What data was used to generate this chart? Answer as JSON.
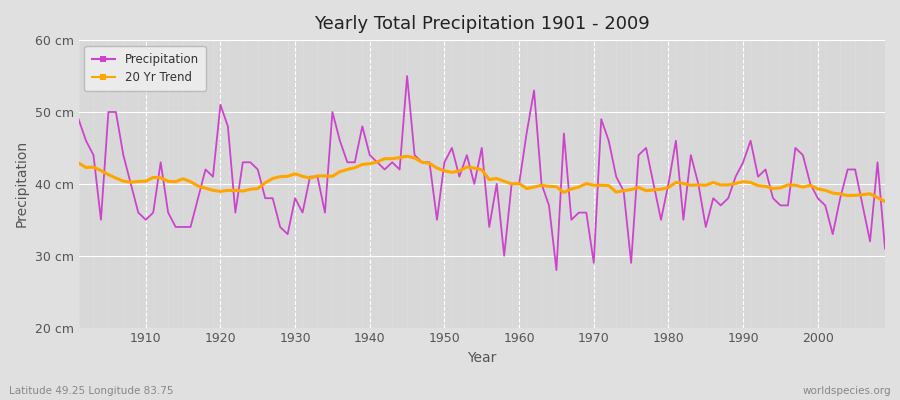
{
  "title": "Yearly Total Precipitation 1901 - 2009",
  "xlabel": "Year",
  "ylabel": "Precipitation",
  "subtitle_left": "Latitude 49.25 Longitude 83.75",
  "subtitle_right": "worldspecies.org",
  "years": [
    1901,
    1902,
    1903,
    1904,
    1905,
    1906,
    1907,
    1908,
    1909,
    1910,
    1911,
    1912,
    1913,
    1914,
    1915,
    1916,
    1917,
    1918,
    1919,
    1920,
    1921,
    1922,
    1923,
    1924,
    1925,
    1926,
    1927,
    1928,
    1929,
    1930,
    1931,
    1932,
    1933,
    1934,
    1935,
    1936,
    1937,
    1938,
    1939,
    1940,
    1941,
    1942,
    1943,
    1944,
    1945,
    1946,
    1947,
    1948,
    1949,
    1950,
    1951,
    1952,
    1953,
    1954,
    1955,
    1956,
    1957,
    1958,
    1959,
    1960,
    1961,
    1962,
    1963,
    1964,
    1965,
    1966,
    1967,
    1968,
    1969,
    1970,
    1971,
    1972,
    1973,
    1974,
    1975,
    1976,
    1977,
    1978,
    1979,
    1980,
    1981,
    1982,
    1983,
    1984,
    1985,
    1986,
    1987,
    1988,
    1989,
    1990,
    1991,
    1992,
    1993,
    1994,
    1995,
    1996,
    1997,
    1998,
    1999,
    2000,
    2001,
    2002,
    2003,
    2004,
    2005,
    2006,
    2007,
    2008,
    2009
  ],
  "precipitation": [
    49,
    46,
    44,
    35,
    50,
    50,
    44,
    40,
    36,
    35,
    36,
    43,
    36,
    34,
    34,
    34,
    38,
    42,
    41,
    51,
    48,
    36,
    43,
    43,
    42,
    38,
    38,
    34,
    33,
    38,
    36,
    41,
    41,
    36,
    50,
    46,
    43,
    43,
    48,
    44,
    43,
    42,
    43,
    42,
    55,
    44,
    43,
    43,
    35,
    43,
    45,
    41,
    44,
    40,
    45,
    34,
    40,
    30,
    40,
    40,
    47,
    53,
    40,
    37,
    28,
    47,
    35,
    36,
    36,
    29,
    49,
    46,
    41,
    39,
    29,
    44,
    45,
    40,
    35,
    40,
    46,
    35,
    44,
    40,
    34,
    38,
    37,
    38,
    41,
    43,
    46,
    41,
    42,
    38,
    37,
    37,
    45,
    44,
    40,
    38,
    37,
    33,
    38,
    42,
    42,
    37,
    32,
    43,
    31
  ],
  "ylim": [
    20,
    60
  ],
  "yticks": [
    20,
    30,
    40,
    50,
    60
  ],
  "ytick_labels": [
    "20 cm",
    "30 cm",
    "40 cm",
    "50 cm",
    "60 cm"
  ],
  "xticks": [
    1910,
    1920,
    1930,
    1940,
    1950,
    1960,
    1970,
    1980,
    1990,
    2000
  ],
  "precip_color": "#CC44CC",
  "trend_color": "#FFA500",
  "bg_color": "#E0E0E0",
  "plot_bg_color": "#D8D8D8",
  "grid_color": "#FFFFFF",
  "legend_bg": "#EBEBEB"
}
